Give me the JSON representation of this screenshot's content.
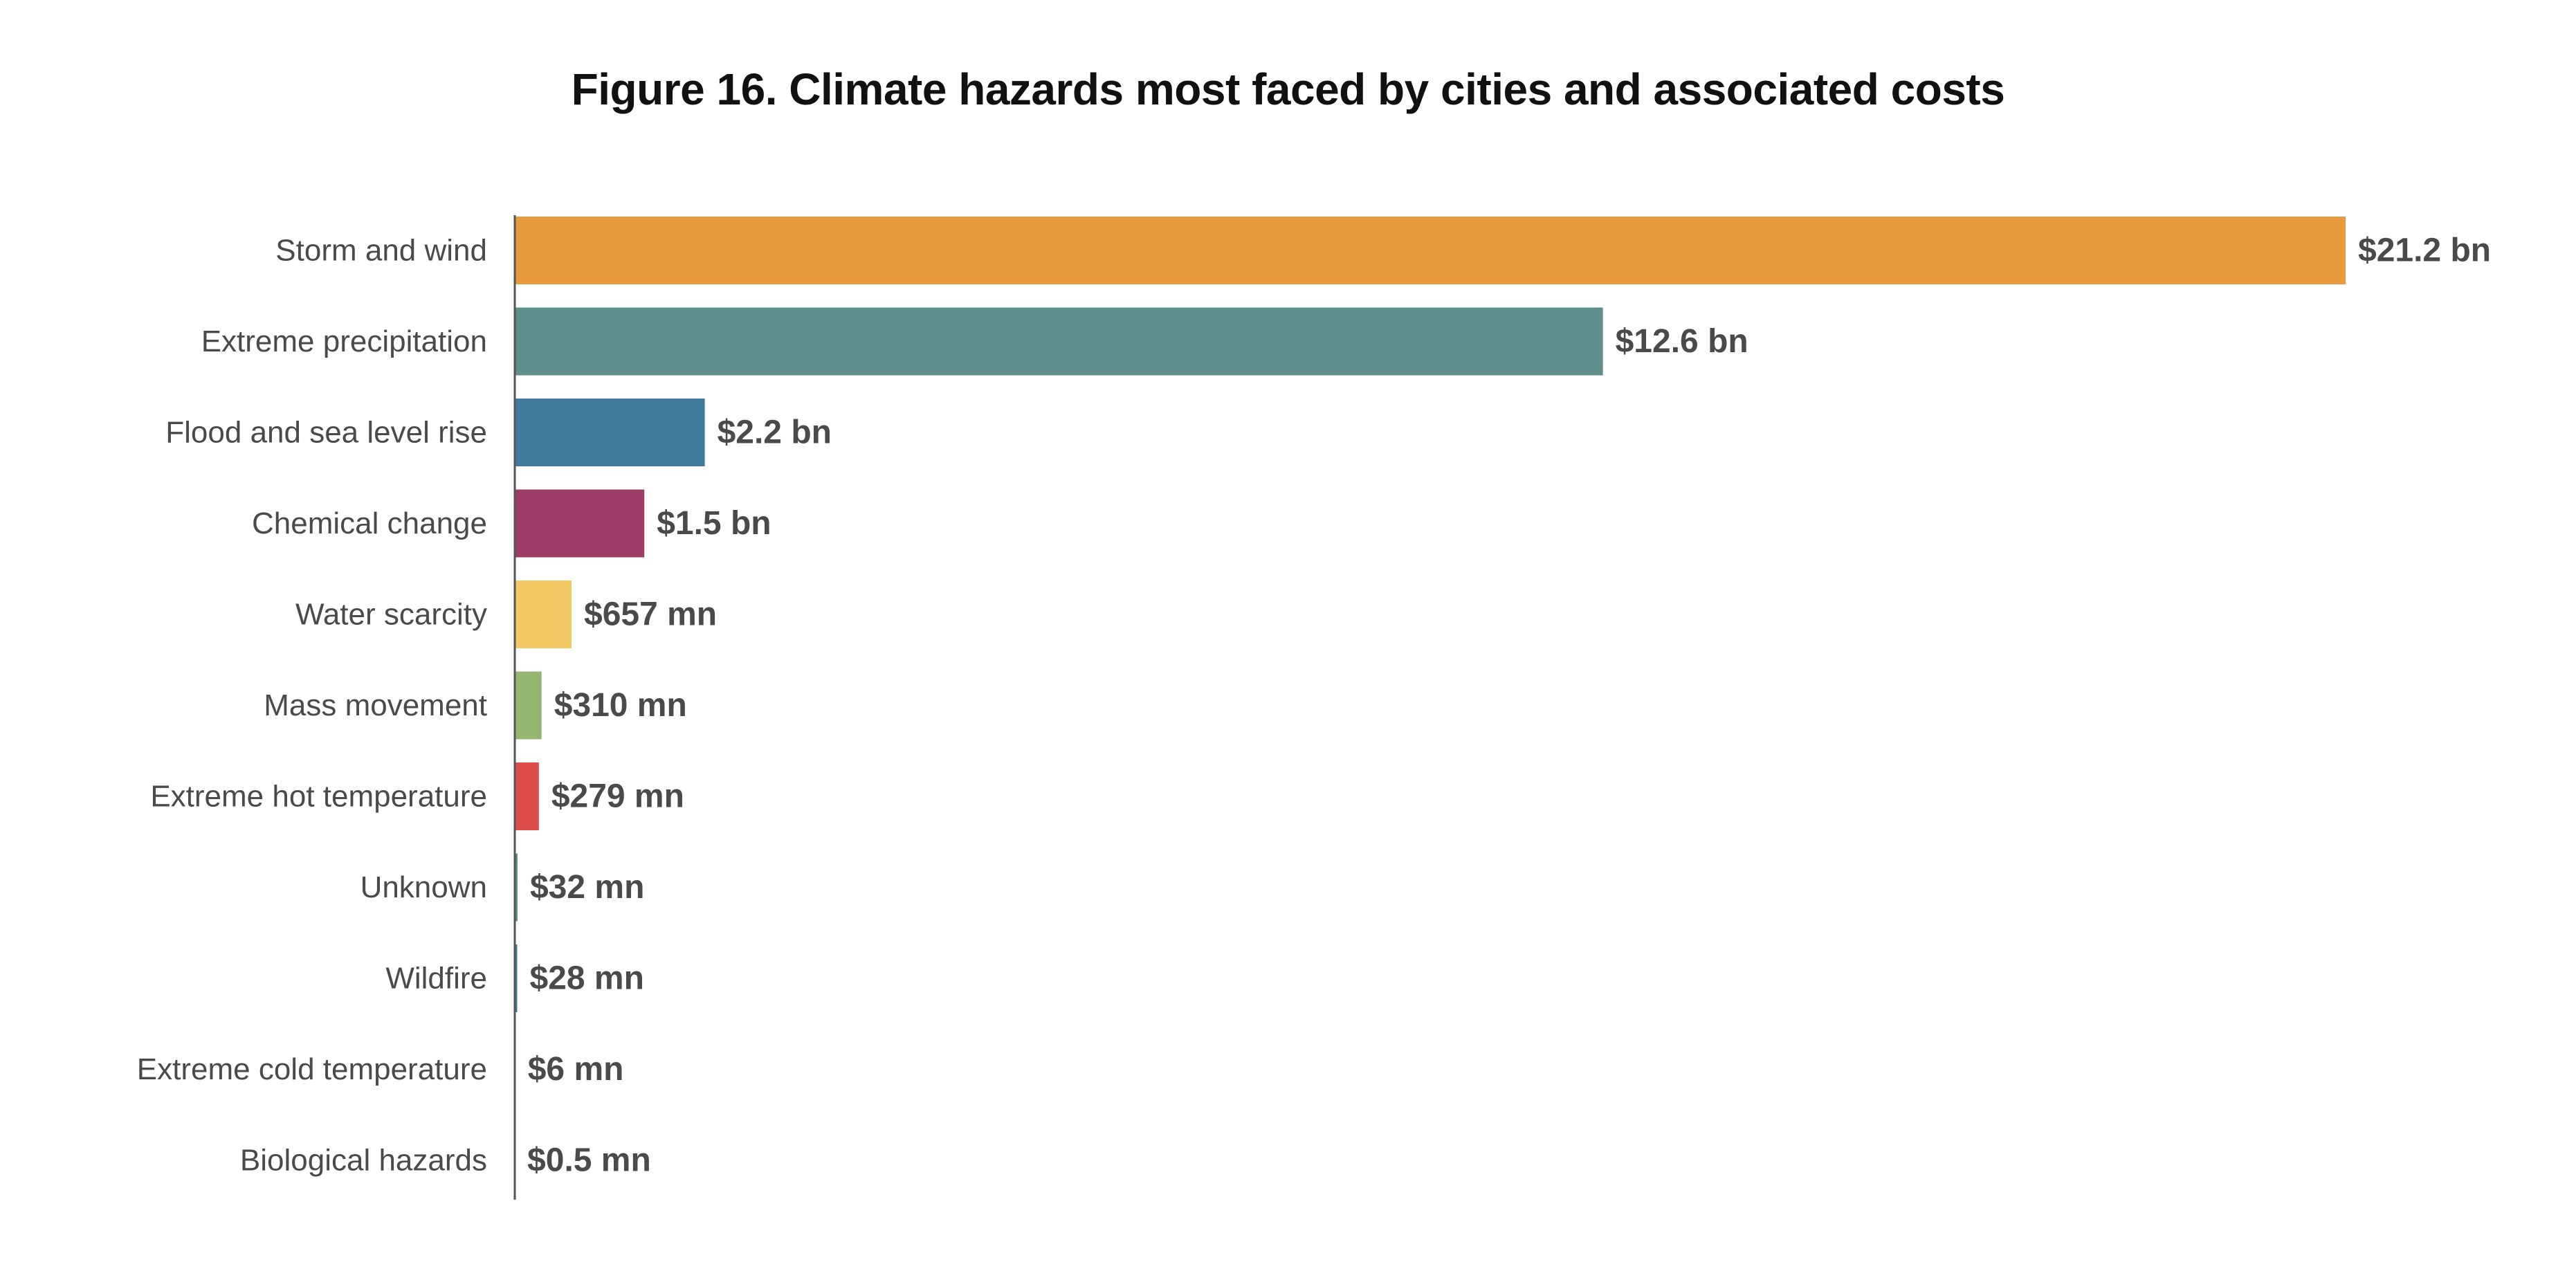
{
  "chart_data": {
    "type": "bar",
    "orientation": "horizontal",
    "title": "Figure 16. Climate hazards most faced by cities and associated costs",
    "xlabel": "",
    "ylabel": "",
    "unit": "USD",
    "grid": false,
    "legend": "none",
    "categories": [
      "Storm and wind",
      "Extreme precipitation",
      "Flood and sea level rise",
      "Chemical change",
      "Water scarcity",
      "Mass movement",
      "Extreme hot temperature",
      "Unknown",
      "Wildfire",
      "Extreme cold temperature",
      "Biological hazards"
    ],
    "values": [
      21200000000,
      12600000000,
      2200000000,
      1500000000,
      657000000,
      310000000,
      279000000,
      32000000,
      28000000,
      6000000,
      500000
    ],
    "value_labels": [
      "$21.2 bn",
      "$12.6 bn",
      "$2.2 bn",
      "$1.5 bn",
      "$657 mn",
      "$310 mn",
      "$279 mn",
      "$32 mn",
      "$28 mn",
      "$6 mn",
      "$0.5 mn"
    ],
    "colors": [
      "#e89a3f",
      "#5e8f8a",
      "#427a9e",
      "#9c3d66",
      "#f2c865",
      "#94b671",
      "#de4d4b",
      "#5e8f8a",
      "#427a9e",
      "#9c3d66",
      "#f2c865"
    ],
    "axis_color": "#555555",
    "xlim": [
      0,
      21200000000
    ]
  }
}
